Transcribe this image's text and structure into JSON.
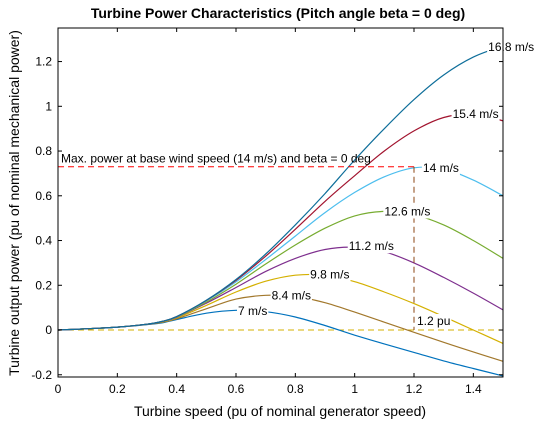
{
  "chart_data": {
    "type": "line",
    "title": "Turbine Power Characteristics (Pitch angle beta = 0 deg)",
    "xlabel": "Turbine speed (pu of nominal generator speed)",
    "ylabel": "Turbine output power (pu of nominal mechanical power)",
    "xlim": [
      0,
      1.5
    ],
    "ylim": [
      -0.21,
      1.35
    ],
    "xticks": [
      "0",
      "0.2",
      "0.4",
      "0.6",
      "0.8",
      "1",
      "1.2",
      "1.4"
    ],
    "yticks": [
      "-0.2",
      "0",
      "0.2",
      "0.4",
      "0.6",
      "0.8",
      "1",
      "1.2"
    ],
    "grid": false,
    "series": [
      {
        "name": "7 m/s",
        "color": "#0072bd",
        "x": [
          0,
          0.1,
          0.2,
          0.3,
          0.35,
          0.4,
          0.5,
          0.6,
          0.7,
          0.8,
          0.9,
          1.0,
          1.1,
          1.2,
          1.3,
          1.4,
          1.5
        ],
        "y": [
          0,
          0.006,
          0.013,
          0.024,
          0.032,
          0.047,
          0.075,
          0.088,
          0.082,
          0.058,
          0.02,
          -0.023,
          -0.062,
          -0.1,
          -0.138,
          -0.172,
          -0.205
        ]
      },
      {
        "name": "8.4 m/s",
        "color": "#a2782c",
        "x": [
          0,
          0.1,
          0.2,
          0.3,
          0.35,
          0.4,
          0.5,
          0.6,
          0.7,
          0.8,
          0.9,
          1.0,
          1.1,
          1.2,
          1.3,
          1.4,
          1.5
        ],
        "y": [
          0,
          0.006,
          0.013,
          0.025,
          0.034,
          0.05,
          0.095,
          0.138,
          0.155,
          0.15,
          0.122,
          0.08,
          0.035,
          -0.01,
          -0.055,
          -0.098,
          -0.14
        ]
      },
      {
        "name": "9.8 m/s",
        "color": "#d4b000",
        "x": [
          0,
          0.1,
          0.2,
          0.3,
          0.35,
          0.4,
          0.5,
          0.6,
          0.7,
          0.8,
          0.9,
          1.0,
          1.1,
          1.2,
          1.3,
          1.4,
          1.5
        ],
        "y": [
          0,
          0.006,
          0.013,
          0.026,
          0.036,
          0.054,
          0.11,
          0.17,
          0.218,
          0.245,
          0.245,
          0.216,
          0.17,
          0.118,
          0.06,
          0.0,
          -0.06
        ]
      },
      {
        "name": "11.2 m/s",
        "color": "#7e2f8e",
        "x": [
          0,
          0.1,
          0.2,
          0.3,
          0.35,
          0.4,
          0.5,
          0.6,
          0.7,
          0.8,
          0.9,
          1.0,
          1.1,
          1.2,
          1.3,
          1.4,
          1.5
        ],
        "y": [
          0,
          0.006,
          0.013,
          0.026,
          0.037,
          0.057,
          0.12,
          0.19,
          0.262,
          0.32,
          0.36,
          0.37,
          0.35,
          0.3,
          0.235,
          0.165,
          0.09
        ]
      },
      {
        "name": "12.6 m/s",
        "color": "#77ac30",
        "x": [
          0,
          0.1,
          0.2,
          0.3,
          0.35,
          0.4,
          0.5,
          0.6,
          0.7,
          0.8,
          0.9,
          1.0,
          1.1,
          1.2,
          1.3,
          1.4,
          1.5
        ],
        "y": [
          0,
          0.006,
          0.013,
          0.026,
          0.038,
          0.058,
          0.125,
          0.205,
          0.295,
          0.38,
          0.455,
          0.51,
          0.53,
          0.515,
          0.47,
          0.4,
          0.32
        ]
      },
      {
        "name": "14 m/s",
        "color": "#4dbeee",
        "x": [
          0,
          0.1,
          0.2,
          0.3,
          0.35,
          0.4,
          0.5,
          0.6,
          0.7,
          0.8,
          0.9,
          1.0,
          1.1,
          1.2,
          1.3,
          1.4,
          1.5
        ],
        "y": [
          0,
          0.006,
          0.013,
          0.026,
          0.038,
          0.059,
          0.13,
          0.215,
          0.315,
          0.42,
          0.525,
          0.615,
          0.685,
          0.725,
          0.72,
          0.67,
          0.6
        ]
      },
      {
        "name": "15.4 m/s",
        "color": "#a2142f",
        "x": [
          0,
          0.1,
          0.2,
          0.3,
          0.35,
          0.4,
          0.5,
          0.6,
          0.7,
          0.8,
          0.9,
          1.0,
          1.1,
          1.2,
          1.3,
          1.4,
          1.5
        ],
        "y": [
          0,
          0.006,
          0.013,
          0.026,
          0.038,
          0.06,
          0.132,
          0.222,
          0.33,
          0.45,
          0.575,
          0.69,
          0.8,
          0.89,
          0.95,
          0.965,
          0.935
        ]
      },
      {
        "name": "16.8 m/s",
        "color": "#0e6e9a",
        "x": [
          0,
          0.1,
          0.2,
          0.3,
          0.35,
          0.4,
          0.5,
          0.6,
          0.7,
          0.8,
          0.9,
          1.0,
          1.1,
          1.2,
          1.3,
          1.4,
          1.5
        ],
        "y": [
          0,
          0.006,
          0.013,
          0.026,
          0.038,
          0.06,
          0.133,
          0.226,
          0.34,
          0.47,
          0.61,
          0.76,
          0.9,
          1.03,
          1.14,
          1.22,
          1.27
        ]
      }
    ],
    "annotations": {
      "max_power_text": "Max. power at base wind speed (14 m/s) and beta = 0 deg",
      "max_power_value": 0.73,
      "base_speed_text": "1.2 pu",
      "base_speed_value": 1.2
    },
    "colors": {
      "zero_line": "#d4b000",
      "max_power_line": "#ff0000",
      "base_speed_line": "#8b4513"
    }
  }
}
